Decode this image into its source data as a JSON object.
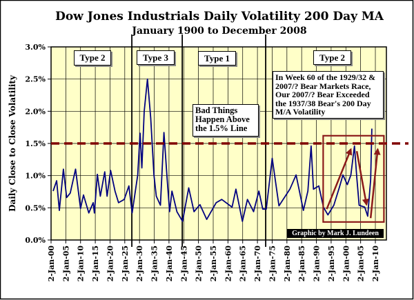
{
  "chart_data": {
    "type": "line",
    "title": "Dow Jones Industrials Daily Volatility 200 Day MA",
    "subtitle": "January 1900 to December 2008",
    "ylabel": "Daily Close to Close Volatility",
    "xlabel": "",
    "xlim": [
      1900,
      2013
    ],
    "ylim": [
      0,
      3.0
    ],
    "y_ticks": [
      "0.0%",
      "0.5%",
      "1.0%",
      "1.5%",
      "2.0%",
      "2.5%",
      "3.0%"
    ],
    "x_ticks": [
      "2-Jan-00",
      "2-Jan-05",
      "2-Jan-10",
      "2-Jan-15",
      "2-Jan-20",
      "2-Jan-25",
      "2-Jan-30",
      "2-Jan-35",
      "2-Jan-40",
      "2-Jan-45",
      "2-Jan-50",
      "2-Jan-55",
      "2-Jan-60",
      "2-Jan-65",
      "2-Jan-70",
      "2-Jan-75",
      "2-Jan-80",
      "2-Jan-85",
      "2-Jan-90",
      "2-Jan-95",
      "2-Jan-00",
      "2-Jan-05",
      "2-Jan-10"
    ],
    "grid": true,
    "colors": {
      "series": "#000080",
      "threshold": "#800000",
      "box": "#8b1a1a",
      "plot_bg": "#ffffc8"
    },
    "series": [
      {
        "x": [
          1900.7,
          1901.9,
          1902.8,
          1904.2,
          1905.3,
          1906.5,
          1908.3,
          1910,
          1911,
          1912.8,
          1914.3,
          1914.7,
          1915.7,
          1916.7,
          1918.2,
          1919,
          1920.2,
          1921.7,
          1922.9,
          1924.8,
          1926.4,
          1927.5,
          1929.4,
          1930.2,
          1930.8,
          1931.6,
          1932.7,
          1933.8,
          1934.9,
          1935.7,
          1937.1,
          1938.3,
          1939.4,
          1940.2,
          1941,
          1942.7,
          1944.6,
          1946.7,
          1948.5,
          1950.5,
          1952.8,
          1956,
          1957.9,
          1961.4,
          1962.7,
          1964.9,
          1966.6,
          1968.7,
          1970.5,
          1971.8,
          1973,
          1975,
          1977.3,
          1981,
          1983.1,
          1985.6,
          1987.1,
          1988.2,
          1989,
          1990.8,
          1992.4,
          1993.9,
          1995.9,
          1997.8,
          1999,
          2000.5,
          2001.7,
          2002.9,
          2003.7,
          2004.5,
          2006.4,
          2007.4,
          2008.4,
          2008.8
        ],
        "y": [
          0.76,
          0.92,
          0.46,
          1.1,
          0.66,
          0.73,
          1.1,
          0.49,
          0.7,
          0.42,
          0.58,
          0.42,
          1.02,
          0.68,
          1.06,
          0.68,
          1.08,
          0.76,
          0.58,
          0.63,
          0.84,
          0.42,
          1.01,
          1.66,
          1.12,
          2.0,
          2.5,
          1.9,
          1.01,
          0.68,
          0.54,
          1.67,
          0.94,
          0.44,
          0.76,
          0.44,
          0.29,
          0.81,
          0.44,
          0.55,
          0.32,
          0.58,
          0.63,
          0.51,
          0.79,
          0.29,
          0.63,
          0.44,
          0.76,
          0.48,
          0.48,
          1.27,
          0.53,
          0.79,
          1.01,
          0.46,
          0.76,
          1.46,
          0.79,
          0.84,
          0.51,
          0.39,
          0.54,
          0.82,
          1.01,
          0.86,
          1.01,
          1.46,
          0.97,
          0.54,
          0.51,
          0.37,
          0.94,
          1.73
        ]
      }
    ],
    "threshold_line": 1.5,
    "regime_dividers": [
      1927.4,
      1944.5,
      1972.8
    ],
    "highlight_box": {
      "x": [
        1992.3,
        2012.9
      ],
      "y": [
        0.28,
        1.62
      ]
    },
    "arrows": [
      {
        "from": [
          1993.5,
          0.48
        ],
        "to": [
          2001.7,
          1.41
        ]
      },
      {
        "from": [
          2003.7,
          1.38
        ],
        "to": [
          2007.0,
          0.55
        ]
      },
      {
        "from": [
          2008.4,
          0.34
        ],
        "to": [
          2010.8,
          1.41
        ]
      }
    ],
    "annotations": {
      "type2_left": "Type 2",
      "type3": "Type 3",
      "type1": "Type 1",
      "type2_right": "Type 2",
      "bad_things": "Bad Things Happen Above the 1.5% Line",
      "week60": "In Week 60 of the 1929/32 & 2007/? Bear Markets Race, Our 2007/? Bear Exceeded the 1937/38 Bear's 200 Day M/A Volatility",
      "credit": "Graphic by Mark J. Lundeen"
    }
  }
}
